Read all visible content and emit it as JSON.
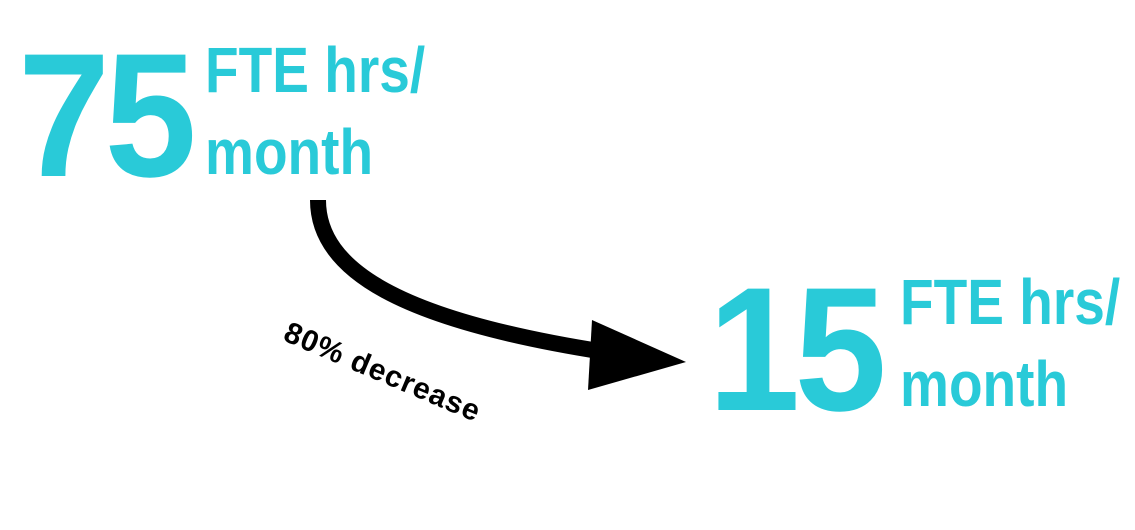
{
  "from": {
    "value": "75",
    "unit_line1": "FTE hrs/",
    "unit_line2": "month"
  },
  "to": {
    "value": "15",
    "unit_line1": "FTE hrs/",
    "unit_line2": "month"
  },
  "change_label": "80% decrease",
  "colors": {
    "accent": "#29cad8",
    "arrow": "#000000",
    "background": "#ffffff"
  }
}
